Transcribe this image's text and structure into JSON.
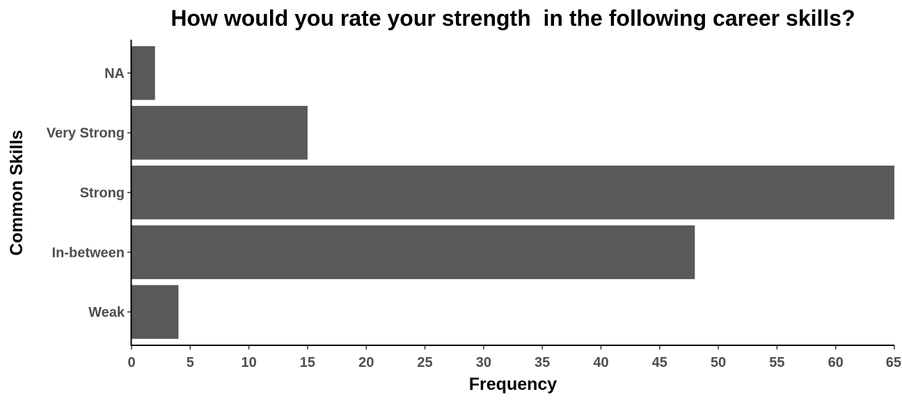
{
  "chart_data": {
    "type": "bar",
    "orientation": "horizontal",
    "title": "How would you rate your strength  in the following career skills?",
    "xlabel": "Frequency",
    "ylabel": "Common Skills",
    "categories": [
      "Weak",
      "In-between",
      "Strong",
      "Very Strong",
      "NA"
    ],
    "values": [
      4,
      48,
      65,
      15,
      2
    ],
    "xlim": [
      0,
      65
    ],
    "xticks": [
      0,
      5,
      10,
      15,
      20,
      25,
      30,
      35,
      40,
      45,
      50,
      55,
      60,
      65
    ],
    "bar_color": "#595959",
    "grid": false,
    "legend": "none"
  }
}
